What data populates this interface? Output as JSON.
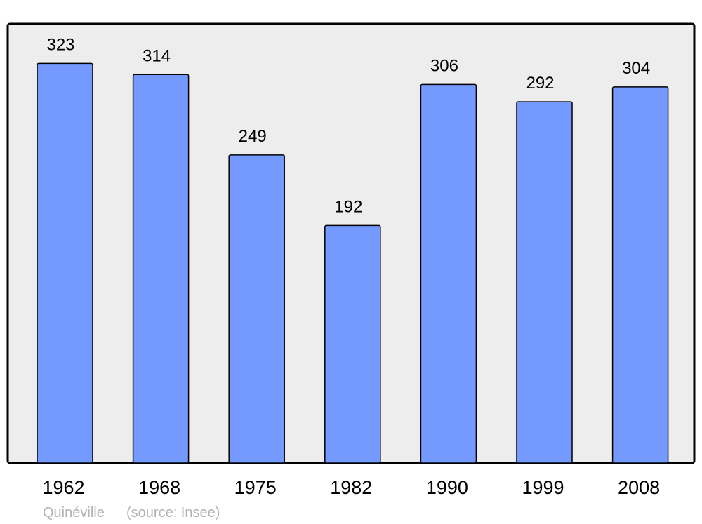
{
  "chart_data": {
    "type": "bar",
    "categories": [
      "1962",
      "1968",
      "1975",
      "1982",
      "1990",
      "1999",
      "2008"
    ],
    "values": [
      323,
      314,
      249,
      192,
      306,
      292,
      304
    ],
    "title": "",
    "xlabel": "",
    "ylabel": "",
    "ylim": [
      0,
      355
    ],
    "grid": false,
    "data_labels": true,
    "colors": {
      "bar": "#7499ff",
      "bar_stroke": "#000000",
      "plot_background": "#ededed",
      "frame": "#000000"
    }
  },
  "footer": {
    "place": "Quinéville",
    "source": "(source: Insee)"
  }
}
